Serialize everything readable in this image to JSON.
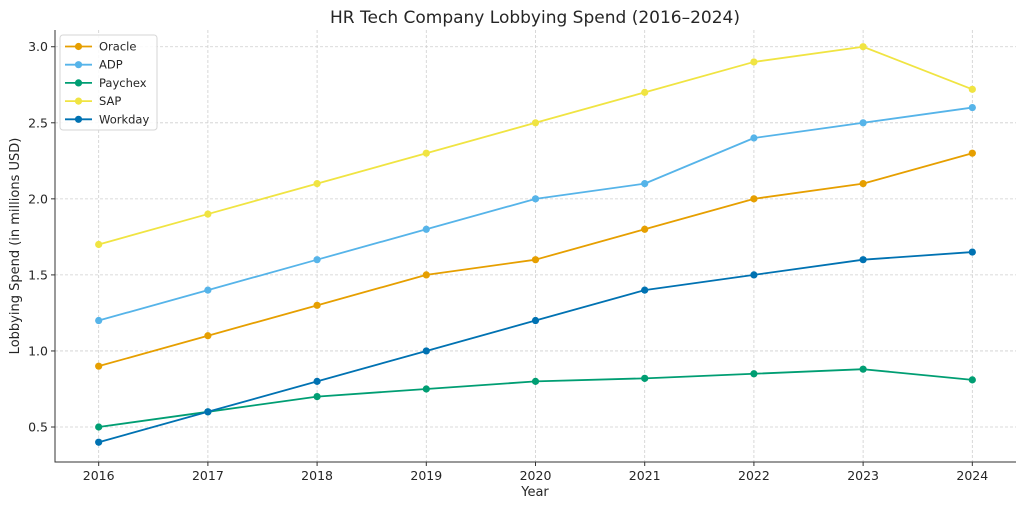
{
  "chart_data": {
    "type": "line",
    "title": "HR Tech Company Lobbying Spend (2016–2024)",
    "xlabel": "Year",
    "ylabel": "Lobbying Spend (in millions USD)",
    "x": [
      2016,
      2017,
      2018,
      2019,
      2020,
      2021,
      2022,
      2023,
      2024
    ],
    "x_tick_labels": [
      "2016",
      "2017",
      "2018",
      "2019",
      "2020",
      "2021",
      "2022",
      "2023",
      "2024"
    ],
    "y_ticks": [
      0.5,
      1.0,
      1.5,
      2.0,
      2.5,
      3.0
    ],
    "y_tick_labels": [
      "0.5",
      "1.0",
      "1.5",
      "2.0",
      "2.5",
      "3.0"
    ],
    "xlim": [
      2015.6,
      2024.4
    ],
    "ylim": [
      0.27,
      3.11
    ],
    "grid": true,
    "legend_position": "top-left",
    "series": [
      {
        "name": "Oracle",
        "color": "#E69F00",
        "values": [
          0.9,
          1.1,
          1.3,
          1.5,
          1.6,
          1.8,
          2.0,
          2.1,
          2.3
        ]
      },
      {
        "name": "ADP",
        "color": "#56B4E9",
        "values": [
          1.2,
          1.4,
          1.6,
          1.8,
          2.0,
          2.1,
          2.4,
          2.5,
          2.6
        ]
      },
      {
        "name": "Paychex",
        "color": "#009E73",
        "values": [
          0.5,
          0.6,
          0.7,
          0.75,
          0.8,
          0.82,
          0.85,
          0.88,
          0.81
        ]
      },
      {
        "name": "SAP",
        "color": "#F0E442",
        "values": [
          1.7,
          1.9,
          2.1,
          2.3,
          2.5,
          2.7,
          2.9,
          3.0,
          2.72
        ]
      },
      {
        "name": "Workday",
        "color": "#0072B2",
        "values": [
          0.4,
          0.6,
          0.8,
          1.0,
          1.2,
          1.4,
          1.5,
          1.6,
          1.65
        ]
      }
    ]
  }
}
